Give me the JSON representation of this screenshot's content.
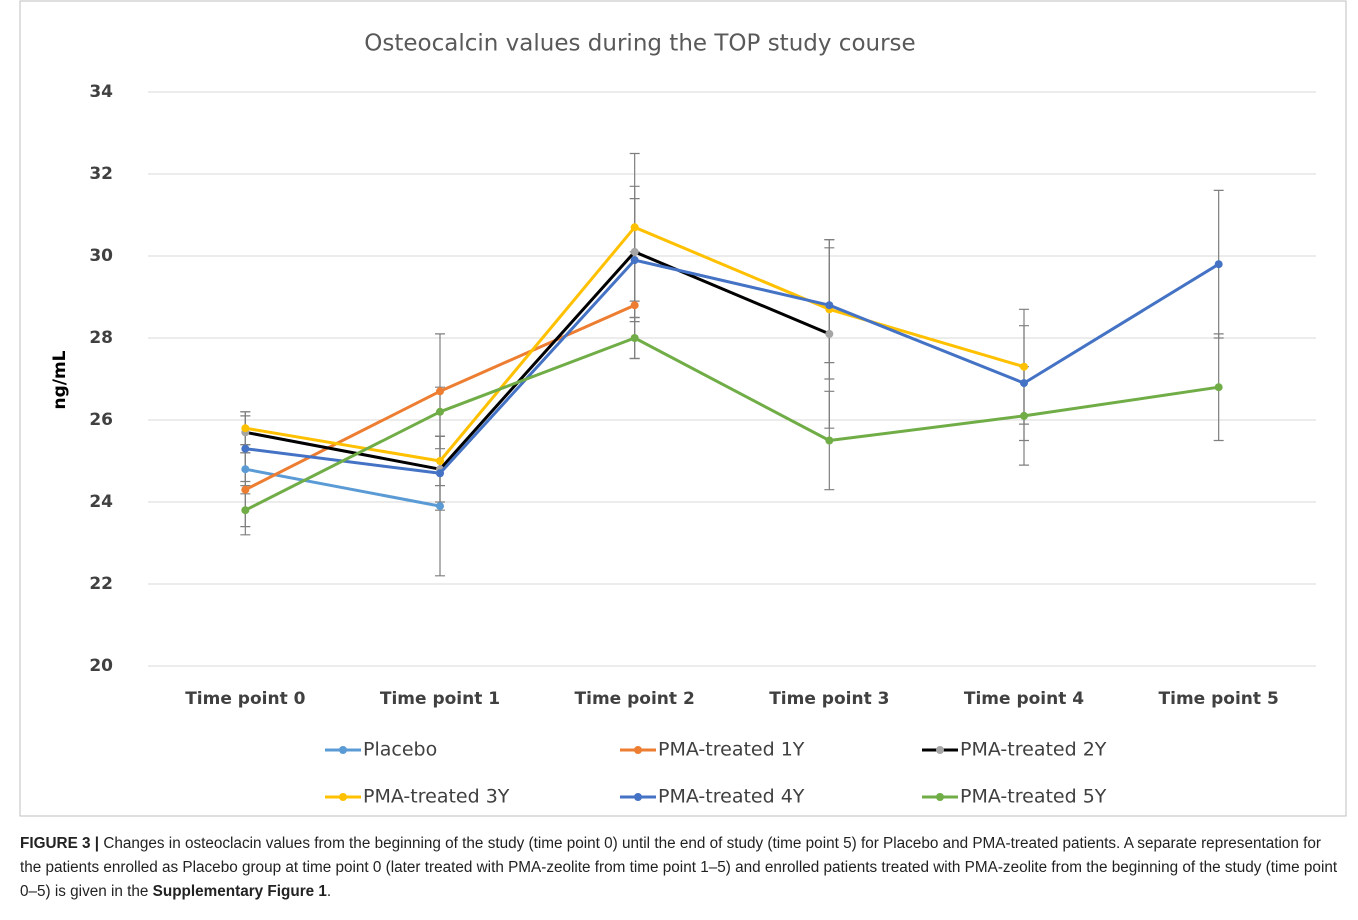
{
  "chart_data": {
    "type": "line",
    "title": "Osteocalcin values during the TOP study course",
    "y_label": "ng/mL",
    "categories": [
      "Time point 0",
      "Time point 1",
      "Time point 2",
      "Time point 3",
      "Time point 4",
      "Time point 5"
    ],
    "ylim": [
      20,
      34
    ],
    "yticks": [
      20,
      22,
      24,
      26,
      28,
      30,
      32,
      34
    ],
    "grid": true,
    "error_color": "#7f7f7f",
    "series": [
      {
        "name": "Placebo",
        "color": "#5b9bd5",
        "values": [
          24.8,
          23.9,
          null,
          null,
          null,
          null
        ],
        "errors": [
          0.6,
          1.7,
          null,
          null,
          null,
          null
        ]
      },
      {
        "name": "PMA-treated 1Y",
        "color": "#ed7d31",
        "values": [
          24.3,
          26.7,
          28.8,
          null,
          null,
          null
        ],
        "errors": [
          0.9,
          1.4,
          1.3,
          null,
          null,
          null
        ]
      },
      {
        "name": "PMA-treated 2Y",
        "color": "#000000",
        "marker_color": "#a5a5a5",
        "values": [
          25.7,
          24.8,
          30.1,
          28.1,
          null,
          null
        ],
        "errors": [
          0.5,
          0.8,
          1.6,
          2.3,
          null,
          null
        ]
      },
      {
        "name": "PMA-treated 3Y",
        "color": "#ffc000",
        "values": [
          25.8,
          25.0,
          30.7,
          28.7,
          27.3,
          null
        ],
        "errors": [
          0.4,
          0.6,
          1.8,
          1.7,
          1.4,
          null
        ]
      },
      {
        "name": "PMA-treated 4Y",
        "color": "#4472c4",
        "values": [
          25.3,
          24.7,
          29.9,
          28.8,
          26.9,
          29.8
        ],
        "errors": [
          0.8,
          0.9,
          1.5,
          1.4,
          1.4,
          1.8
        ]
      },
      {
        "name": "PMA-treated 5Y",
        "color": "#70ad47",
        "values": [
          23.8,
          26.2,
          28.0,
          25.5,
          26.1,
          26.8
        ],
        "errors": [
          0.6,
          0.6,
          0.5,
          1.2,
          1.2,
          1.3
        ]
      }
    ]
  },
  "caption": {
    "label": "FIGURE 3 |",
    "text": " Changes in osteoclacin values from the beginning of the study (time point 0) until the end of study (time point 5) for Placebo and PMA-treated patients. A separate representation for the patients enrolled as Placebo group at time point 0 (later treated with PMA-zeolite from time point 1–5) and enrolled patients treated with PMA-zeolite from the beginning of the study (time point 0–5) is given in the ",
    "link": "Supplementary Figure 1",
    "end": "."
  }
}
